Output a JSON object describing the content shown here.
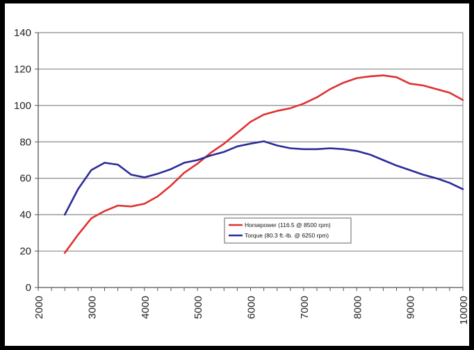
{
  "chart_data": {
    "type": "line",
    "title": "",
    "xlabel": "",
    "ylabel": "",
    "xlim": [
      2000,
      10000
    ],
    "ylim": [
      0,
      140
    ],
    "x_ticks": [
      2000,
      3000,
      4000,
      5000,
      6000,
      7000,
      8000,
      9000,
      10000
    ],
    "x_tick_labels": [
      "2000",
      "3000",
      "4000",
      "5000",
      "6000",
      "7000",
      "8000",
      "9000",
      "10000"
    ],
    "y_ticks": [
      0,
      20,
      40,
      60,
      80,
      100,
      120,
      140
    ],
    "y_tick_labels": [
      "0",
      "20",
      "40",
      "60",
      "80",
      "100",
      "120",
      "140"
    ],
    "grid": "horizontal",
    "legend_position": "center-right",
    "series": [
      {
        "name": "Horsepower (116.5 @ 8500 rpm)",
        "color": "#e03030",
        "x": [
          2500,
          2750,
          3000,
          3250,
          3500,
          3750,
          4000,
          4250,
          4500,
          4750,
          5000,
          5250,
          5500,
          5750,
          6000,
          6250,
          6500,
          6750,
          7000,
          7250,
          7500,
          7750,
          8000,
          8250,
          8500,
          8750,
          9000,
          9250,
          9500,
          9750,
          10000
        ],
        "y": [
          19,
          29,
          38,
          42,
          45,
          44.5,
          46,
          50,
          56,
          63,
          68,
          74,
          79,
          85,
          91,
          95,
          97,
          98.5,
          101,
          104.5,
          109,
          112.5,
          115,
          116,
          116.5,
          115.5,
          112,
          111,
          109,
          107,
          103
        ]
      },
      {
        "name": "Torque (80.3 ft.-lb. @ 6250 rpm)",
        "color": "#2a2a9a",
        "x": [
          2500,
          2750,
          3000,
          3250,
          3500,
          3750,
          4000,
          4250,
          4500,
          4750,
          5000,
          5250,
          5500,
          5750,
          6000,
          6250,
          6500,
          6750,
          7000,
          7250,
          7500,
          7750,
          8000,
          8250,
          8500,
          8750,
          9000,
          9250,
          9500,
          9750,
          10000
        ],
        "y": [
          40,
          54,
          64.5,
          68.5,
          67.5,
          62,
          60.5,
          62.5,
          65,
          68.5,
          70,
          72.5,
          74.5,
          77.5,
          79,
          80.3,
          78,
          76.5,
          76,
          76,
          76.5,
          76,
          75,
          73,
          70,
          67,
          64.5,
          62,
          60,
          57.5,
          54
        ]
      }
    ]
  }
}
